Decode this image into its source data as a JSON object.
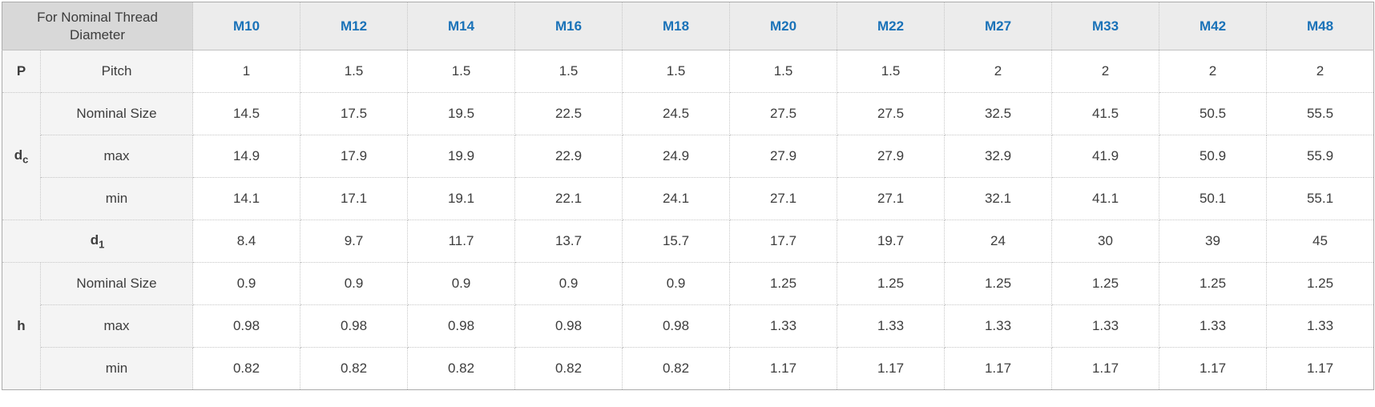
{
  "colors": {
    "header_link_blue": "#1a72b8",
    "corner_header_bg": "#d8d8d8",
    "column_header_bg": "#ececec",
    "label_cell_bg": "#f4f4f4",
    "value_cell_bg": "#ffffff",
    "text_dark": "#3d3d3d",
    "border_dotted": "#c6c6c6",
    "border_outer": "#ababab"
  },
  "table": {
    "corner_header": "For Nominal Thread Diameter",
    "thread_sizes": [
      "M10",
      "M12",
      "M14",
      "M16",
      "M18",
      "M20",
      "M22",
      "M27",
      "M33",
      "M42",
      "M48"
    ],
    "row_groups": [
      {
        "symbol": "P",
        "symbol_sub": "",
        "merged": false,
        "rows": [
          {
            "label": "Pitch",
            "values": [
              "1",
              "1.5",
              "1.5",
              "1.5",
              "1.5",
              "1.5",
              "1.5",
              "2",
              "2",
              "2",
              "2"
            ]
          }
        ]
      },
      {
        "symbol": "d",
        "symbol_sub": "c",
        "merged": false,
        "rows": [
          {
            "label": "Nominal Size",
            "values": [
              "14.5",
              "17.5",
              "19.5",
              "22.5",
              "24.5",
              "27.5",
              "27.5",
              "32.5",
              "41.5",
              "50.5",
              "55.5"
            ]
          },
          {
            "label": "max",
            "values": [
              "14.9",
              "17.9",
              "19.9",
              "22.9",
              "24.9",
              "27.9",
              "27.9",
              "32.9",
              "41.9",
              "50.9",
              "55.9"
            ]
          },
          {
            "label": "min",
            "values": [
              "14.1",
              "17.1",
              "19.1",
              "22.1",
              "24.1",
              "27.1",
              "27.1",
              "32.1",
              "41.1",
              "50.1",
              "55.1"
            ]
          }
        ]
      },
      {
        "symbol": "d",
        "symbol_sub": "1",
        "merged": true,
        "rows": [
          {
            "label": "",
            "values": [
              "8.4",
              "9.7",
              "11.7",
              "13.7",
              "15.7",
              "17.7",
              "19.7",
              "24",
              "30",
              "39",
              "45"
            ]
          }
        ]
      },
      {
        "symbol": "h",
        "symbol_sub": "",
        "merged": false,
        "rows": [
          {
            "label": "Nominal Size",
            "values": [
              "0.9",
              "0.9",
              "0.9",
              "0.9",
              "0.9",
              "1.25",
              "1.25",
              "1.25",
              "1.25",
              "1.25",
              "1.25"
            ]
          },
          {
            "label": "max",
            "values": [
              "0.98",
              "0.98",
              "0.98",
              "0.98",
              "0.98",
              "1.33",
              "1.33",
              "1.33",
              "1.33",
              "1.33",
              "1.33"
            ]
          },
          {
            "label": "min",
            "values": [
              "0.82",
              "0.82",
              "0.82",
              "0.82",
              "0.82",
              "1.17",
              "1.17",
              "1.17",
              "1.17",
              "1.17",
              "1.17"
            ]
          }
        ]
      }
    ]
  },
  "chart_data": {
    "type": "table",
    "title": "Thread dimensions for nominal thread diameters",
    "columns": [
      "For Nominal Thread Diameter",
      "M10",
      "M12",
      "M14",
      "M16",
      "M18",
      "M20",
      "M22",
      "M27",
      "M33",
      "M42",
      "M48"
    ],
    "rows": [
      [
        "P / Pitch",
        1,
        1.5,
        1.5,
        1.5,
        1.5,
        1.5,
        1.5,
        2,
        2,
        2,
        2
      ],
      [
        "dc / Nominal Size",
        14.5,
        17.5,
        19.5,
        22.5,
        24.5,
        27.5,
        27.5,
        32.5,
        41.5,
        50.5,
        55.5
      ],
      [
        "dc / max",
        14.9,
        17.9,
        19.9,
        22.9,
        24.9,
        27.9,
        27.9,
        32.9,
        41.9,
        50.9,
        55.9
      ],
      [
        "dc / min",
        14.1,
        17.1,
        19.1,
        22.1,
        24.1,
        27.1,
        27.1,
        32.1,
        41.1,
        50.1,
        55.1
      ],
      [
        "d1",
        8.4,
        9.7,
        11.7,
        13.7,
        15.7,
        17.7,
        19.7,
        24,
        30,
        39,
        45
      ],
      [
        "h / Nominal Size",
        0.9,
        0.9,
        0.9,
        0.9,
        0.9,
        1.25,
        1.25,
        1.25,
        1.25,
        1.25,
        1.25
      ],
      [
        "h / max",
        0.98,
        0.98,
        0.98,
        0.98,
        0.98,
        1.33,
        1.33,
        1.33,
        1.33,
        1.33,
        1.33
      ],
      [
        "h / min",
        0.82,
        0.82,
        0.82,
        0.82,
        0.82,
        1.17,
        1.17,
        1.17,
        1.17,
        1.17,
        1.17
      ]
    ]
  }
}
